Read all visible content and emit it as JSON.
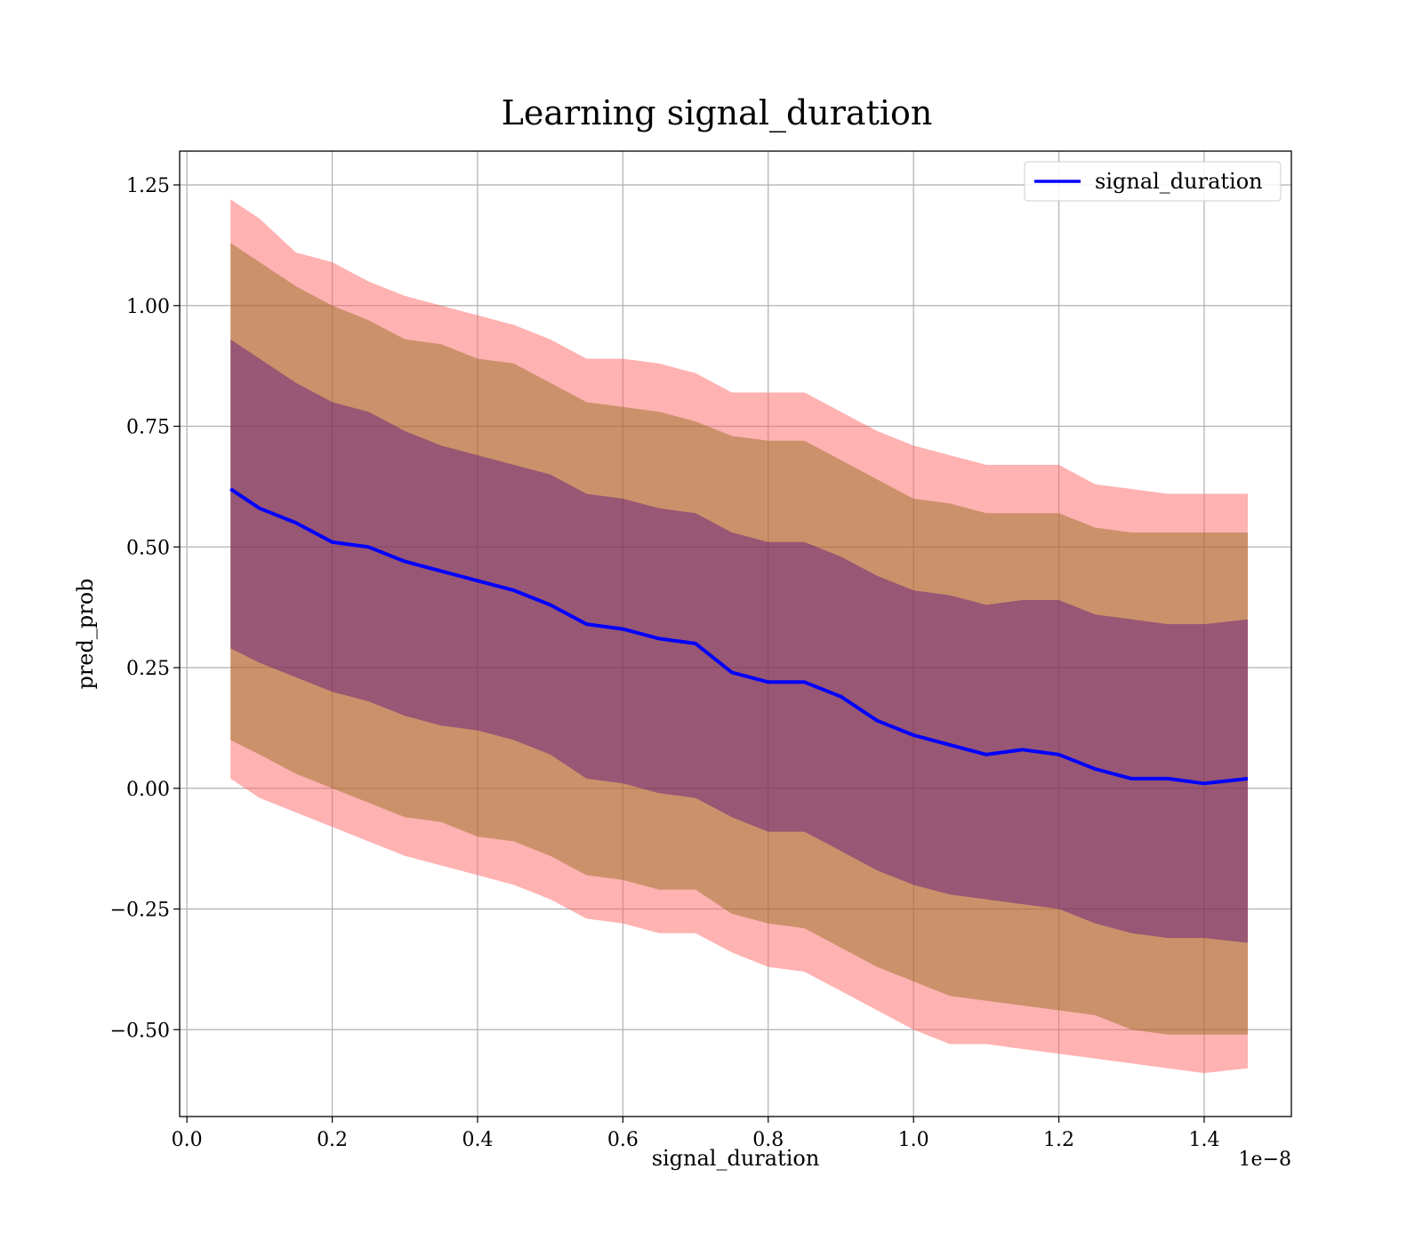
{
  "chart_data": {
    "type": "line",
    "title": "Learning signal_duration",
    "xlabel": "signal_duration",
    "ylabel": "pred_prob",
    "x_offset_text": "1e−8",
    "xlim": [
      -0.01,
      1.52
    ],
    "ylim": [
      -0.68,
      1.32
    ],
    "x_ticks": [
      0.0,
      0.2,
      0.4,
      0.6,
      0.8,
      1.0,
      1.2,
      1.4
    ],
    "x_tick_labels": [
      "0.0",
      "0.2",
      "0.4",
      "0.6",
      "0.8",
      "1.0",
      "1.2",
      "1.4"
    ],
    "y_ticks": [
      -0.5,
      -0.25,
      0.0,
      0.25,
      0.5,
      0.75,
      1.0,
      1.25
    ],
    "y_tick_labels": [
      "−0.50",
      "−0.25",
      "0.00",
      "0.25",
      "0.50",
      "0.75",
      "1.00",
      "1.25"
    ],
    "grid": true,
    "legend": {
      "position": "top-right",
      "entries": [
        "signal_duration"
      ]
    },
    "colors": {
      "line": "#0000ff",
      "band_3sd": "#ff6666",
      "band_2sd": "#8b6914",
      "band_1sd": "#4b0082"
    },
    "x": [
      0.06,
      0.1,
      0.15,
      0.2,
      0.25,
      0.3,
      0.35,
      0.4,
      0.45,
      0.5,
      0.55,
      0.6,
      0.65,
      0.7,
      0.75,
      0.8,
      0.85,
      0.9,
      0.95,
      1.0,
      1.05,
      1.1,
      1.15,
      1.2,
      1.25,
      1.3,
      1.35,
      1.4,
      1.46
    ],
    "series": [
      {
        "name": "signal_duration",
        "values": [
          0.62,
          0.58,
          0.55,
          0.51,
          0.5,
          0.47,
          0.45,
          0.43,
          0.41,
          0.38,
          0.34,
          0.33,
          0.31,
          0.3,
          0.24,
          0.22,
          0.22,
          0.19,
          0.14,
          0.11,
          0.09,
          0.07,
          0.08,
          0.07,
          0.04,
          0.02,
          0.02,
          0.01,
          0.02
        ]
      }
    ],
    "bands": [
      {
        "level": "3sd",
        "upper": [
          1.22,
          1.18,
          1.11,
          1.09,
          1.05,
          1.02,
          1.0,
          0.98,
          0.96,
          0.93,
          0.89,
          0.89,
          0.88,
          0.86,
          0.82,
          0.82,
          0.82,
          0.78,
          0.74,
          0.71,
          0.69,
          0.67,
          0.67,
          0.67,
          0.63,
          0.62,
          0.61,
          0.61,
          0.61
        ],
        "lower": [
          0.02,
          -0.02,
          -0.05,
          -0.08,
          -0.11,
          -0.14,
          -0.16,
          -0.18,
          -0.2,
          -0.23,
          -0.27,
          -0.28,
          -0.3,
          -0.3,
          -0.34,
          -0.37,
          -0.38,
          -0.42,
          -0.46,
          -0.5,
          -0.53,
          -0.53,
          -0.54,
          -0.55,
          -0.56,
          -0.57,
          -0.58,
          -0.59,
          -0.58
        ]
      },
      {
        "level": "2sd",
        "upper": [
          1.13,
          1.09,
          1.04,
          1.0,
          0.97,
          0.93,
          0.92,
          0.89,
          0.88,
          0.84,
          0.8,
          0.79,
          0.78,
          0.76,
          0.73,
          0.72,
          0.72,
          0.68,
          0.64,
          0.6,
          0.59,
          0.57,
          0.57,
          0.57,
          0.54,
          0.53,
          0.53,
          0.53,
          0.53
        ],
        "lower": [
          0.1,
          0.07,
          0.03,
          0.0,
          -0.03,
          -0.06,
          -0.07,
          -0.1,
          -0.11,
          -0.14,
          -0.18,
          -0.19,
          -0.21,
          -0.21,
          -0.26,
          -0.28,
          -0.29,
          -0.33,
          -0.37,
          -0.4,
          -0.43,
          -0.44,
          -0.45,
          -0.46,
          -0.47,
          -0.5,
          -0.51,
          -0.51,
          -0.51
        ]
      },
      {
        "level": "1sd",
        "upper": [
          0.93,
          0.89,
          0.84,
          0.8,
          0.78,
          0.74,
          0.71,
          0.69,
          0.67,
          0.65,
          0.61,
          0.6,
          0.58,
          0.57,
          0.53,
          0.51,
          0.51,
          0.48,
          0.44,
          0.41,
          0.4,
          0.38,
          0.39,
          0.39,
          0.36,
          0.35,
          0.34,
          0.34,
          0.35
        ],
        "lower": [
          0.29,
          0.26,
          0.23,
          0.2,
          0.18,
          0.15,
          0.13,
          0.12,
          0.1,
          0.07,
          0.02,
          0.01,
          -0.01,
          -0.02,
          -0.06,
          -0.09,
          -0.09,
          -0.13,
          -0.17,
          -0.2,
          -0.22,
          -0.23,
          -0.24,
          -0.25,
          -0.28,
          -0.3,
          -0.31,
          -0.31,
          -0.32
        ]
      }
    ]
  }
}
